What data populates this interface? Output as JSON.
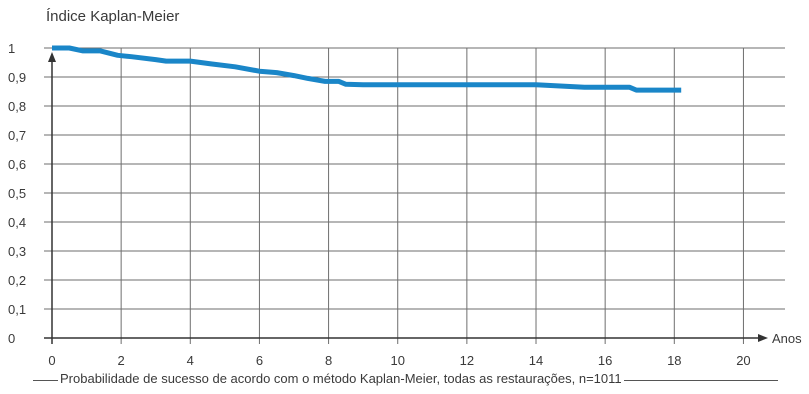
{
  "chart_data": {
    "type": "line",
    "title": "",
    "ylabel": "Índice Kaplan-Meier",
    "xlabel": "Anos",
    "xlim": [
      0,
      20
    ],
    "ylim": [
      0,
      1
    ],
    "x_ticks": [
      0,
      2,
      4,
      6,
      8,
      10,
      12,
      14,
      16,
      18,
      20
    ],
    "y_ticks": [
      0,
      0.1,
      0.2,
      0.3,
      0.4,
      0.5,
      0.6,
      0.7,
      0.8,
      0.9,
      1
    ],
    "y_tick_labels": [
      "0",
      "0,1",
      "0,2",
      "0,3",
      "0,4",
      "0,5",
      "0,6",
      "0,7",
      "0,8",
      "0,9",
      "1"
    ],
    "grid": true,
    "line_color": "#1a86c8",
    "series": [
      {
        "x": [
          0,
          0.5,
          0.9,
          1.4,
          1.9,
          2.3,
          3.0,
          3.3,
          4.0,
          4.6,
          5.3,
          6.0,
          6.5,
          7.0,
          7.4,
          7.9,
          8.3,
          8.5,
          9.0,
          10,
          12,
          14,
          15.4,
          16.7,
          16.9,
          18.2
        ],
        "y": [
          1.0,
          1.0,
          0.99,
          0.99,
          0.975,
          0.97,
          0.96,
          0.955,
          0.955,
          0.945,
          0.935,
          0.92,
          0.915,
          0.905,
          0.895,
          0.885,
          0.885,
          0.875,
          0.873,
          0.873,
          0.873,
          0.873,
          0.865,
          0.865,
          0.855,
          0.855
        ]
      }
    ]
  },
  "caption": "Probabilidade de sucesso de acordo com o método Kaplan-Meier, todas as restaurações, n=1011"
}
